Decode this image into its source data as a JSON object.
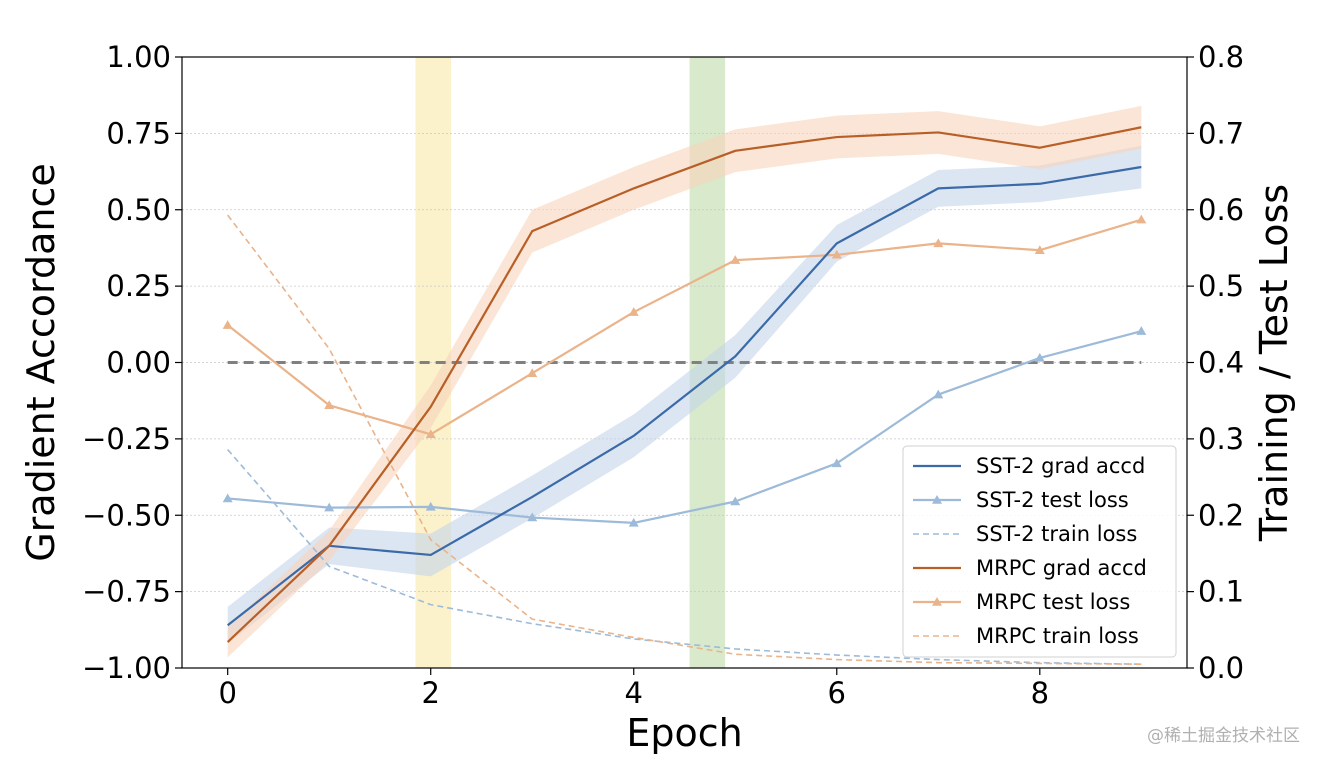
{
  "chart_data": {
    "type": "line",
    "xlabel": "Epoch",
    "ylabel_left": "Gradient Accordance",
    "ylabel_right": "Training / Test Loss",
    "x": [
      0,
      1,
      2,
      3,
      4,
      5,
      6,
      7,
      8,
      9
    ],
    "xlim": [
      -0.45,
      9.45
    ],
    "ylim_left": [
      -1.0,
      1.0
    ],
    "ylim_right": [
      0.0,
      0.8
    ],
    "x_ticks": [
      0,
      2,
      4,
      6,
      8
    ],
    "y_ticks_left": [
      -1.0,
      -0.75,
      -0.5,
      -0.25,
      0.0,
      0.25,
      0.5,
      0.75,
      1.0
    ],
    "y_ticks_right": [
      0.0,
      0.1,
      0.2,
      0.3,
      0.4,
      0.5,
      0.6,
      0.7,
      0.8
    ],
    "x_tick_labels": [
      "0",
      "2",
      "4",
      "6",
      "8"
    ],
    "y_tick_labels_left": [
      "−1.00",
      "−0.75",
      "−0.50",
      "−0.25",
      "0.00",
      "0.25",
      "0.50",
      "0.75",
      "1.00"
    ],
    "y_tick_labels_right": [
      "0.0",
      "0.1",
      "0.2",
      "0.3",
      "0.4",
      "0.5",
      "0.6",
      "0.7",
      "0.8"
    ],
    "grid": "horizontal",
    "reference_line": {
      "axis": "left",
      "y": 0.0,
      "color": "#808080",
      "style": "dashed"
    },
    "highlight_bands": [
      {
        "x_start": 1.85,
        "x_end": 2.2,
        "color": "#f7e08a"
      },
      {
        "x_start": 4.55,
        "x_end": 4.9,
        "color": "#a8cf8e"
      }
    ],
    "legend_position": "lower-right",
    "series": [
      {
        "name": "SST-2 grad accd",
        "axis": "left",
        "style": "solid",
        "marker": "none",
        "color": "#3b6aa8",
        "values": [
          -0.86,
          -0.6,
          -0.63,
          -0.44,
          -0.24,
          0.02,
          0.39,
          0.57,
          0.585,
          0.64
        ],
        "band": [
          0.06,
          0.06,
          0.07,
          0.07,
          0.07,
          0.07,
          0.06,
          0.06,
          0.06,
          0.07
        ],
        "band_color": "#c5d6ea"
      },
      {
        "name": "SST-2 test loss",
        "axis": "right",
        "style": "solid",
        "marker": "triangle",
        "color": "#9dbbd9",
        "values": [
          0.222,
          0.21,
          0.211,
          0.197,
          0.19,
          0.218,
          0.268,
          0.358,
          0.406,
          0.441
        ]
      },
      {
        "name": "SST-2 train loss",
        "axis": "right",
        "style": "dashed",
        "marker": "none",
        "color": "#9dbbd9",
        "values": [
          0.286,
          0.133,
          0.083,
          0.058,
          0.038,
          0.025,
          0.017,
          0.011,
          0.007,
          0.005
        ]
      },
      {
        "name": "MRPC grad accd",
        "axis": "left",
        "style": "solid",
        "marker": "none",
        "color": "#b85f28",
        "values": [
          -0.915,
          -0.6,
          -0.145,
          0.43,
          0.57,
          0.693,
          0.738,
          0.753,
          0.703,
          0.77
        ],
        "band": [
          0.05,
          0.05,
          0.07,
          0.07,
          0.07,
          0.07,
          0.07,
          0.07,
          0.07,
          0.07
        ],
        "band_color": "#f9d3bb"
      },
      {
        "name": "MRPC test loss",
        "axis": "right",
        "style": "solid",
        "marker": "triangle",
        "color": "#eab38a",
        "values": [
          0.449,
          0.344,
          0.306,
          0.386,
          0.466,
          0.534,
          0.541,
          0.556,
          0.547,
          0.587
        ]
      },
      {
        "name": "MRPC train loss",
        "axis": "right",
        "style": "dashed",
        "marker": "none",
        "color": "#eab38a",
        "values": [
          0.593,
          0.418,
          0.168,
          0.064,
          0.04,
          0.018,
          0.011,
          0.007,
          0.006,
          0.005
        ]
      }
    ]
  },
  "watermark": "@稀土掘金技术社区"
}
